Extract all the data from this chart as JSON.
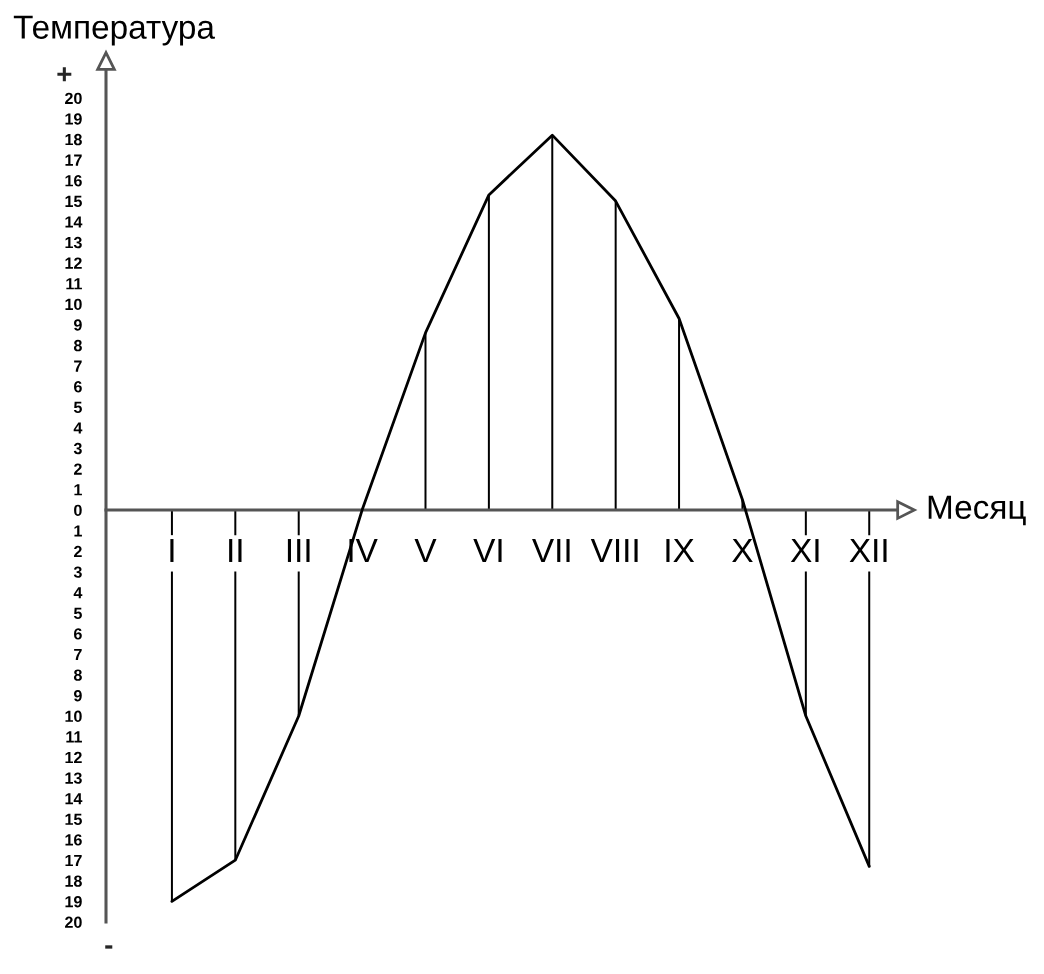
{
  "chart_data": {
    "type": "line",
    "xlabel": "Месяц",
    "ylabel": "Температура",
    "annotations": [
      "+",
      "-"
    ],
    "categories": [
      "I",
      "II",
      "III",
      "IV",
      "V",
      "VI",
      "VII",
      "VIII",
      "IX",
      "X",
      "XI",
      "XII"
    ],
    "series": [
      {
        "color": "#000000",
        "values": [
          -19,
          -17,
          -10,
          0,
          8.6,
          15.3,
          18.2,
          15,
          9.3,
          0.5,
          -10,
          -17.3
        ]
      },
      {
        "type": "bar",
        "color": "#000000",
        "values": [
          -19,
          -17,
          -10,
          0,
          8.6,
          15.3,
          18.2,
          15,
          9.3,
          0.5,
          -10,
          -17.3
        ]
      }
    ],
    "ylim": [
      -20,
      21.8
    ],
    "yticks": [
      {
        "value": -20,
        "label": "20"
      },
      {
        "value": -19,
        "label": "19"
      },
      {
        "value": -18,
        "label": "18"
      },
      {
        "value": -17,
        "label": "17"
      },
      {
        "value": -16,
        "label": "16"
      },
      {
        "value": -15,
        "label": "15"
      },
      {
        "value": -14,
        "label": "14"
      },
      {
        "value": -13,
        "label": "13"
      },
      {
        "value": -12,
        "label": "12"
      },
      {
        "value": -11,
        "label": "11"
      },
      {
        "value": -10,
        "label": "10"
      },
      {
        "value": -9,
        "label": "9"
      },
      {
        "value": -8,
        "label": "8"
      },
      {
        "value": -7,
        "label": "7"
      },
      {
        "value": -6,
        "label": "6"
      },
      {
        "value": -5,
        "label": "5"
      },
      {
        "value": -4,
        "label": "4"
      },
      {
        "value": -3,
        "label": "3"
      },
      {
        "value": -2,
        "label": "2"
      },
      {
        "value": -1,
        "label": "1"
      },
      0,
      1,
      2,
      3,
      4,
      5,
      6,
      7,
      8,
      9,
      10,
      11,
      12,
      13,
      14,
      15,
      16,
      17,
      18,
      19,
      20
    ],
    "marker": "none"
  }
}
